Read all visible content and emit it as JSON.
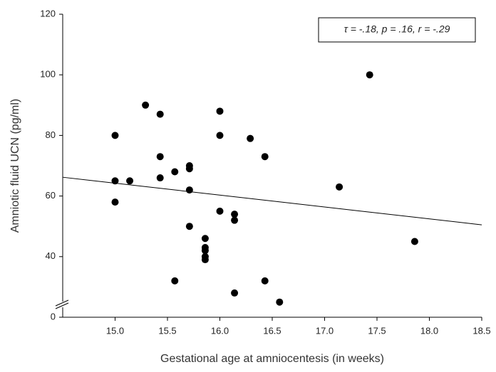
{
  "chart_data": {
    "type": "scatter",
    "x_label": "Gestational age at amniocentesis (in weeks)",
    "y_label": "Amniotic fluid UCN (pg/ml)",
    "annotation": "τ = -.18, p = .16, r = -.29",
    "color": "#000000",
    "xlim": [
      14.5,
      18.5
    ],
    "xticks": [
      {
        "value": 15,
        "label": "15.0"
      },
      {
        "value": 15.5,
        "label": "15.5"
      },
      {
        "value": 16,
        "label": "16.0"
      },
      {
        "value": 16.5,
        "label": "16.5"
      },
      {
        "value": 17,
        "label": "17.0"
      },
      {
        "value": 17.5,
        "label": "17.5"
      },
      {
        "value": 18,
        "label": "18.0"
      },
      {
        "value": 18.5,
        "label": "18.5"
      }
    ],
    "ylim": [
      20,
      120
    ],
    "yticks": [
      {
        "value": 20,
        "label": "0"
      },
      40,
      60,
      80,
      100,
      120
    ],
    "x": [
      15.0,
      15.0,
      15.0,
      15.14,
      15.29,
      15.43,
      15.43,
      15.43,
      15.57,
      15.57,
      15.71,
      15.71,
      15.71,
      15.71,
      15.86,
      15.86,
      15.86,
      15.86,
      15.86,
      16.0,
      16.0,
      16.0,
      16.14,
      16.14,
      16.14,
      16.29,
      16.43,
      16.43,
      16.57,
      17.14,
      17.43,
      17.86
    ],
    "values": [
      80,
      65,
      58,
      65,
      90,
      87,
      73,
      66,
      68,
      32,
      70,
      69,
      62,
      50,
      46,
      43,
      42,
      40,
      39,
      88,
      80,
      55,
      54,
      52,
      28,
      79,
      73,
      32,
      25,
      63,
      100,
      45
    ],
    "trend_line": {
      "x": [
        14.5,
        18.5
      ],
      "values": [
        66.2,
        50.5
      ]
    }
  }
}
